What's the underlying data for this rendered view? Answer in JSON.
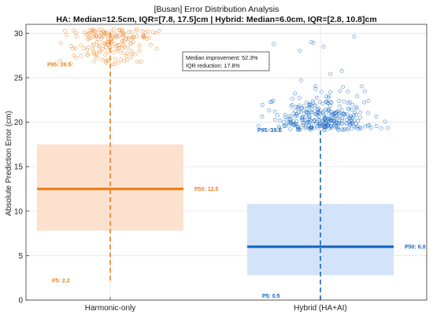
{
  "chart_data": {
    "type": "box",
    "title": "[Busan] Error Distribution Analysis",
    "subtitle": "HA: Median=12.5cm, IQR=[7.8, 17.5]cm | Hybrid: Median=6.0cm, IQR=[2.8, 10.8]cm",
    "xlabel": "",
    "ylabel": "Absolute Prediction Error (cm)",
    "ylim": [
      0,
      31
    ],
    "yticks": [
      0,
      5,
      10,
      15,
      20,
      25,
      30
    ],
    "grid": true,
    "categories": [
      "Harmonic-only",
      "Hybrid (HA+AI)"
    ],
    "series": [
      {
        "category": "Harmonic-only",
        "color": "#f07f1c",
        "fill": "#fde1cf",
        "median": 12.5,
        "q1": 7.8,
        "q3": 17.5,
        "p5": 2.2,
        "p95": 26.5,
        "whisker_low": 2.2,
        "whisker_high": 30.2,
        "labels": {
          "median": "P50: 12.5",
          "p5": "P5: 2.2",
          "p95": "P95: 26.5"
        }
      },
      {
        "category": "Hybrid (HA+AI)",
        "color": "#1565c0",
        "fill": "#d3e3f9",
        "median": 6.0,
        "q1": 2.8,
        "q3": 10.8,
        "p5": 0.5,
        "p95": 19.1,
        "whisker_low": 0.0,
        "whisker_high": 19.1,
        "labels": {
          "median": "P50: 6.0",
          "p5": "P5: 0.5",
          "p95": "P95: 19.1"
        }
      }
    ],
    "annotation": {
      "lines": [
        "Median improvement: 52.3%",
        "IQR reduction: 17.8%"
      ]
    },
    "outliers": [
      {
        "category": "Harmonic-only",
        "y_range": [
          26.5,
          30.5
        ],
        "count": 170
      },
      {
        "category": "Hybrid (HA+AI)",
        "y_range": [
          19.1,
          30.0
        ],
        "count": 330
      }
    ]
  }
}
